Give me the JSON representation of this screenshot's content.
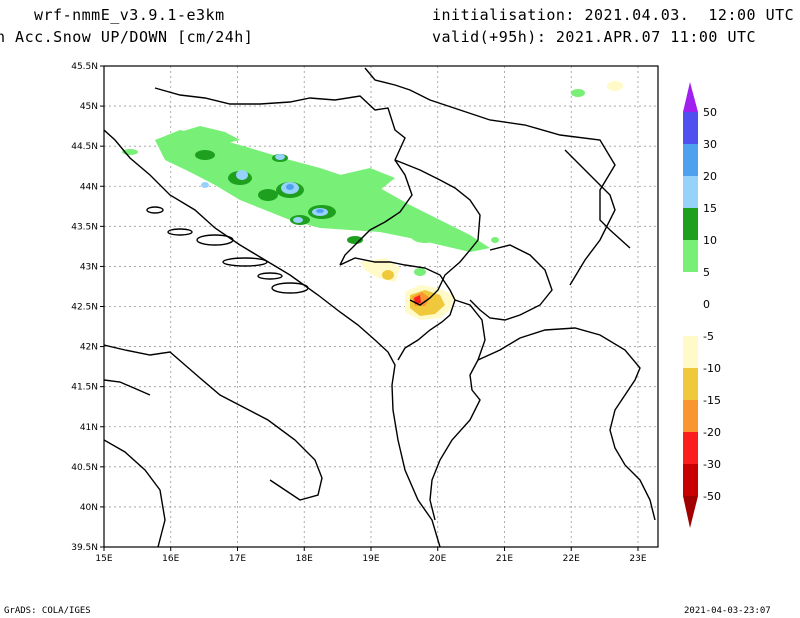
{
  "header": {
    "model": "wrf-nmmE_v3.9.1-e3km",
    "field": "n Acc.Snow UP/DOWN [cm/24h]",
    "init": "initialisation: 2021.04.03.  12:00 UTC",
    "valid": "valid(+95h): 2021.APR.07 11:00 UTC"
  },
  "footer": {
    "credit": "GrADS: COLA/IGES",
    "timestamp": "2021-04-03-23:07"
  },
  "map": {
    "lat_labels": [
      "45.5N",
      "45N",
      "44.5N",
      "44N",
      "43.5N",
      "43N",
      "42.5N",
      "42N",
      "41.5N",
      "41N",
      "40.5N",
      "40N",
      "39.5N"
    ],
    "lon_labels": [
      "15E",
      "16E",
      "17E",
      "18E",
      "19E",
      "20E",
      "21E",
      "22E",
      "23E"
    ],
    "lat_range": [
      39.5,
      45.5
    ],
    "lon_range": [
      15,
      23.3
    ],
    "grid": true
  },
  "colorbar": {
    "labels": [
      "50",
      "30",
      "20",
      "15",
      "10",
      "5",
      "0",
      "-5",
      "-10",
      "-15",
      "-20",
      "-30",
      "-50"
    ],
    "colors": {
      "top_arrow": "#a020f0",
      "c30_50": "#5050f0",
      "c20_30": "#50a0f0",
      "c15_20": "#96d2fa",
      "c10_15": "#1ea01e",
      "c5_10": "#78f078",
      "c0_5": "#ffffff",
      "cm5_0": "#ffffff",
      "cm10_m5": "#fffac8",
      "cm15_m10": "#f0c83c",
      "cm20_m15": "#fa9632",
      "cm30_m20": "#fa1e1e",
      "cm50_m30": "#c80000",
      "bottom_arrow": "#a00000"
    }
  }
}
